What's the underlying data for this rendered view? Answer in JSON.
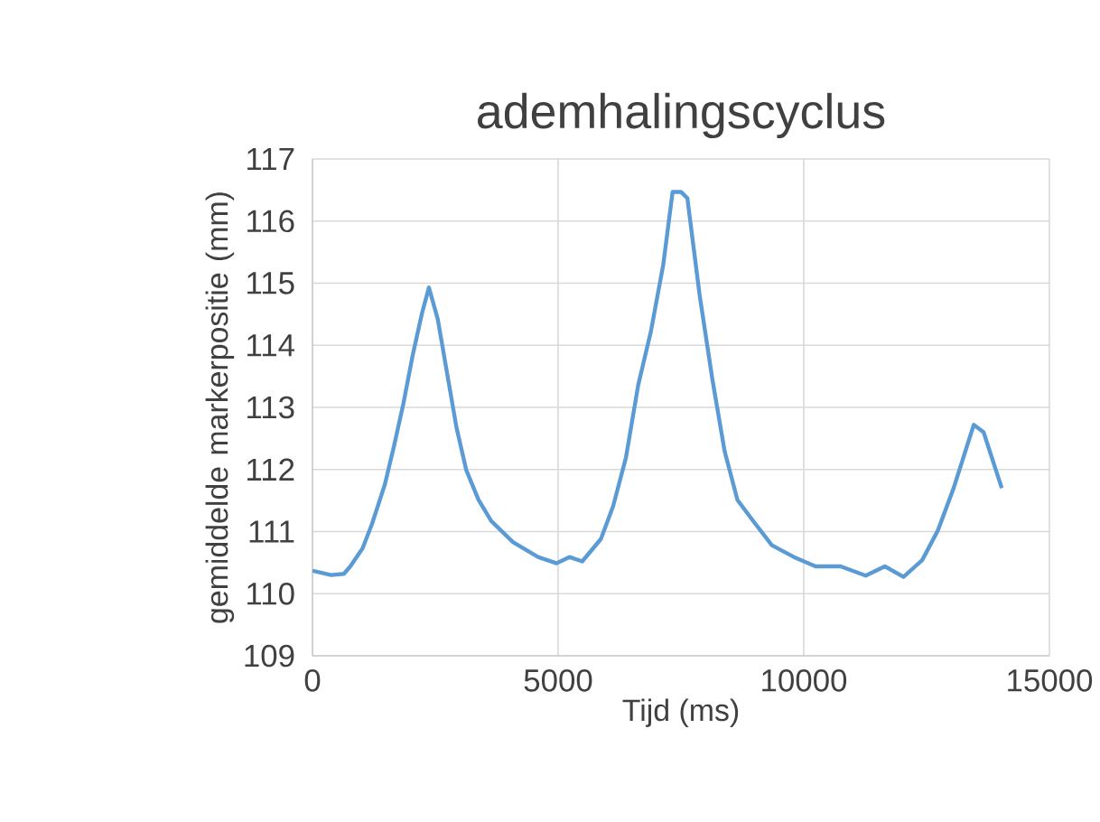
{
  "chart_data": {
    "type": "line",
    "title": "ademhalingscyclus",
    "xlabel": "Tijd (ms)",
    "ylabel": "gemiddelde markerpositie (mm)",
    "xlim": [
      0,
      15000
    ],
    "ylim": [
      109,
      117
    ],
    "xticks": [
      0,
      5000,
      10000,
      15000
    ],
    "yticks": [
      109,
      110,
      111,
      112,
      113,
      114,
      115,
      116,
      117
    ],
    "grid": true,
    "marker": "none",
    "line_style": "solid",
    "series": [
      {
        "color": "#5b9bd5",
        "x": [
          0,
          380,
          640,
          770,
          1020,
          1210,
          1470,
          1660,
          1850,
          2040,
          2230,
          2370,
          2550,
          2740,
          2930,
          3130,
          3380,
          3640,
          4080,
          4590,
          4970,
          5230,
          5490,
          5870,
          6120,
          6380,
          6630,
          6890,
          7140,
          7330,
          7500,
          7630,
          7880,
          8140,
          8390,
          8650,
          8970,
          9350,
          9800,
          10240,
          10750,
          11260,
          11650,
          12030,
          12410,
          12730,
          13050,
          13460,
          13660,
          14030
        ],
        "values": [
          110.37,
          110.3,
          110.32,
          110.44,
          110.73,
          111.12,
          111.75,
          112.38,
          113.06,
          113.84,
          114.52,
          114.93,
          114.42,
          113.55,
          112.68,
          111.99,
          111.51,
          111.17,
          110.83,
          110.59,
          110.49,
          110.59,
          110.52,
          110.88,
          111.41,
          112.19,
          113.36,
          114.23,
          115.3,
          116.47,
          116.47,
          116.37,
          114.81,
          113.45,
          112.29,
          111.51,
          111.17,
          110.78,
          110.59,
          110.44,
          110.44,
          110.29,
          110.44,
          110.27,
          110.54,
          111.02,
          111.7,
          112.72,
          112.6,
          111.7
        ]
      }
    ]
  }
}
